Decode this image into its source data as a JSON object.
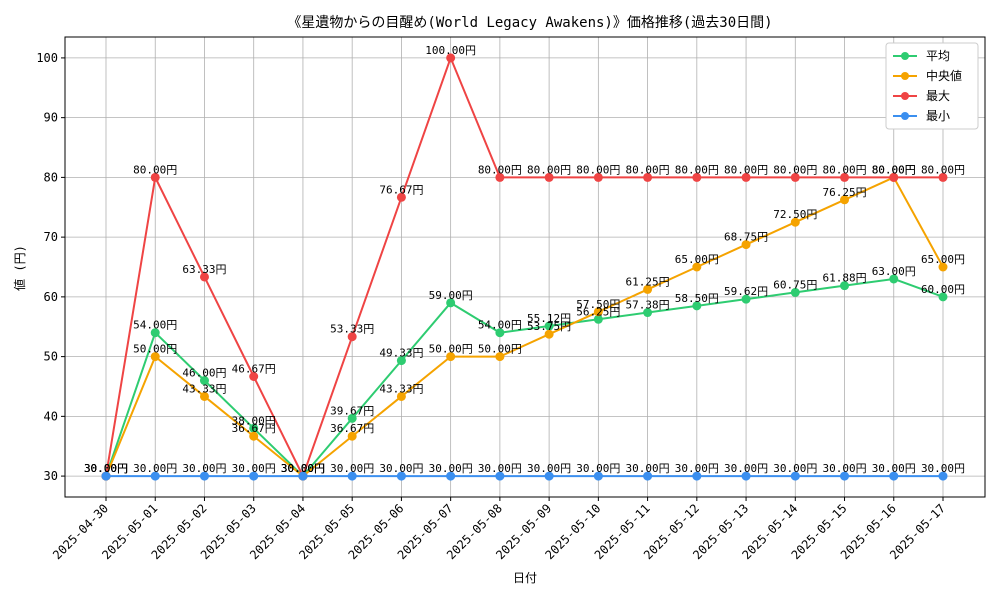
{
  "chart_data": {
    "type": "line",
    "title": "《星遺物からの目醒め(World Legacy Awakens)》価格推移(過去30日間)",
    "xlabel": "日付",
    "ylabel": "値 (円)",
    "ylim": [
      26.5,
      103.5
    ],
    "yticks": [
      30,
      40,
      50,
      60,
      70,
      80,
      90,
      100
    ],
    "grid": true,
    "legend_position": "top-right",
    "label_suffix": "円",
    "categories": [
      "2025-04-30",
      "2025-05-01",
      "2025-05-02",
      "2025-05-03",
      "2025-05-04",
      "2025-05-05",
      "2025-05-06",
      "2025-05-07",
      "2025-05-08",
      "2025-05-09",
      "2025-05-10",
      "2025-05-11",
      "2025-05-12",
      "2025-05-13",
      "2025-05-14",
      "2025-05-15",
      "2025-05-16",
      "2025-05-17"
    ],
    "series": [
      {
        "name": "平均",
        "color": "#2ecc71",
        "values": [
          30.0,
          54.0,
          46.0,
          38.0,
          30.0,
          39.67,
          49.33,
          59.0,
          54.0,
          55.12,
          56.25,
          57.38,
          58.5,
          59.62,
          60.75,
          61.88,
          63.0,
          60.0
        ]
      },
      {
        "name": "中央値",
        "color": "#f5a300",
        "values": [
          30.0,
          50.0,
          43.33,
          36.67,
          30.0,
          36.67,
          43.33,
          50.0,
          50.0,
          53.75,
          57.5,
          61.25,
          65.0,
          68.75,
          72.5,
          76.25,
          80.0,
          65.0
        ]
      },
      {
        "name": "最大",
        "color": "#ef4444",
        "values": [
          30.0,
          80.0,
          63.33,
          46.67,
          30.0,
          53.33,
          76.67,
          100.0,
          80.0,
          80.0,
          80.0,
          80.0,
          80.0,
          80.0,
          80.0,
          80.0,
          80.0,
          80.0
        ]
      },
      {
        "name": "最小",
        "color": "#3b8fef",
        "values": [
          30.0,
          30.0,
          30.0,
          30.0,
          30.0,
          30.0,
          30.0,
          30.0,
          30.0,
          30.0,
          30.0,
          30.0,
          30.0,
          30.0,
          30.0,
          30.0,
          30.0,
          30.0
        ]
      }
    ]
  }
}
